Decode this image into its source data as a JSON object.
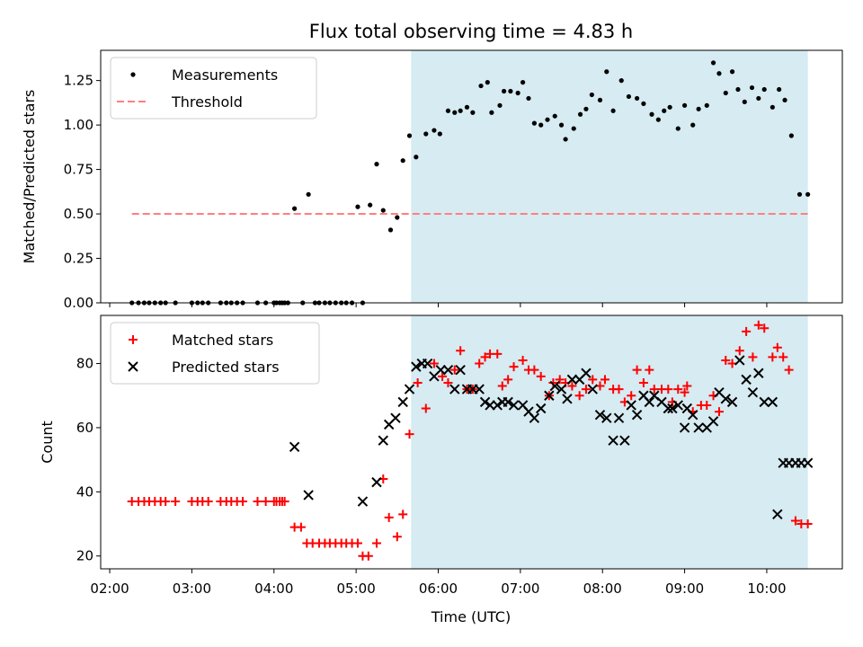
{
  "chart_data": {
    "title": "Flux total observing time = 4.83 h",
    "xlabel": "Time (UTC)",
    "x_tick_labels": [
      "02:00",
      "03:00",
      "04:00",
      "05:00",
      "06:00",
      "07:00",
      "08:00",
      "09:00",
      "10:00"
    ],
    "x_tick_values_h": [
      2,
      3,
      4,
      5,
      6,
      7,
      8,
      9,
      10
    ],
    "xlim_h": [
      1.89,
      10.92
    ],
    "shaded_span_h": [
      5.67,
      10.5
    ],
    "shade_color": "#add8e6",
    "panels": [
      {
        "type": "scatter",
        "ylabel": "Matched/Predicted stars",
        "ylim": [
          0,
          1.42
        ],
        "y_tick_values": [
          0,
          0.25,
          0.5,
          0.75,
          1.0,
          1.25
        ],
        "y_tick_labels": [
          "0.00",
          "0.25",
          "0.50",
          "0.75",
          "1.00",
          "1.25"
        ],
        "legend_position": "upper-left",
        "series": [
          {
            "name": "Measurements",
            "marker": "dot",
            "color": "#000000",
            "x": [
              2.27,
              2.35,
              2.42,
              2.48,
              2.55,
              2.62,
              2.68,
              2.8,
              3.0,
              3.07,
              3.13,
              3.2,
              3.35,
              3.42,
              3.48,
              3.55,
              3.62,
              3.8,
              3.9,
              4.0,
              4.03,
              4.07,
              4.1,
              4.13,
              4.17,
              4.25,
              4.35,
              4.42,
              4.5,
              4.55,
              4.62,
              4.68,
              4.75,
              4.82,
              4.88,
              4.95,
              5.02,
              5.08,
              5.17,
              5.25,
              5.33,
              5.42,
              5.5,
              5.57,
              5.65,
              5.73,
              5.85,
              5.95,
              6.02,
              6.12,
              6.2,
              6.27,
              6.35,
              6.42,
              6.52,
              6.6,
              6.65,
              6.75,
              6.8,
              6.88,
              6.97,
              7.03,
              7.1,
              7.17,
              7.25,
              7.33,
              7.42,
              7.5,
              7.55,
              7.65,
              7.73,
              7.8,
              7.87,
              7.97,
              8.05,
              8.13,
              8.23,
              8.32,
              8.42,
              8.5,
              8.6,
              8.68,
              8.75,
              8.82,
              8.92,
              9.0,
              9.1,
              9.17,
              9.27,
              9.35,
              9.42,
              9.5,
              9.58,
              9.65,
              9.73,
              9.82,
              9.9,
              9.97,
              10.07,
              10.15,
              10.22,
              10.3,
              10.4,
              10.5
            ],
            "y": [
              0,
              0,
              0,
              0,
              0,
              0,
              0,
              0,
              0,
              0,
              0,
              0,
              0,
              0,
              0,
              0,
              0,
              0,
              0,
              0,
              0,
              0,
              0,
              0,
              0,
              0.53,
              0,
              0.61,
              0,
              0,
              0,
              0,
              0,
              0,
              0,
              0,
              0.54,
              0,
              0.55,
              0.78,
              0.52,
              0.41,
              0.48,
              0.8,
              0.94,
              0.82,
              0.95,
              0.97,
              0.95,
              1.08,
              1.07,
              1.08,
              1.1,
              1.07,
              1.22,
              1.24,
              1.07,
              1.11,
              1.19,
              1.19,
              1.18,
              1.24,
              1.15,
              1.01,
              1.0,
              1.03,
              1.05,
              1.0,
              0.92,
              0.98,
              1.06,
              1.09,
              1.17,
              1.14,
              1.3,
              1.08,
              1.25,
              1.16,
              1.15,
              1.12,
              1.06,
              1.03,
              1.08,
              1.1,
              0.98,
              1.11,
              1.0,
              1.09,
              1.11,
              1.35,
              1.29,
              1.18,
              1.3,
              1.2,
              1.13,
              1.21,
              1.15,
              1.2,
              1.1,
              1.2,
              1.14,
              0.94,
              0.61,
              0.61
            ]
          },
          {
            "name": "Threshold",
            "marker": "dashed-line",
            "color": "#ff7f7f",
            "x": [
              2.27,
              10.5
            ],
            "y": [
              0.5,
              0.5
            ]
          }
        ]
      },
      {
        "type": "scatter",
        "ylabel": "Count",
        "ylim": [
          16,
          95
        ],
        "y_tick_values": [
          20,
          40,
          60,
          80
        ],
        "y_tick_labels": [
          "20",
          "40",
          "60",
          "80"
        ],
        "legend_position": "upper-left",
        "series": [
          {
            "name": "Matched stars",
            "marker": "plus",
            "color": "#ff0000",
            "x": [
              2.27,
              2.35,
              2.42,
              2.48,
              2.55,
              2.62,
              2.68,
              2.8,
              3.0,
              3.07,
              3.13,
              3.2,
              3.35,
              3.42,
              3.48,
              3.55,
              3.62,
              3.8,
              3.9,
              4.0,
              4.03,
              4.07,
              4.1,
              4.13,
              4.25,
              4.33,
              4.4,
              4.47,
              4.55,
              4.62,
              4.68,
              4.75,
              4.82,
              4.88,
              4.95,
              5.02,
              5.08,
              5.15,
              5.25,
              5.33,
              5.4,
              5.5,
              5.57,
              5.65,
              5.75,
              5.85,
              5.95,
              6.05,
              6.12,
              6.2,
              6.27,
              6.35,
              6.42,
              6.5,
              6.57,
              6.63,
              6.72,
              6.78,
              6.85,
              6.92,
              7.03,
              7.1,
              7.17,
              7.25,
              7.35,
              7.4,
              7.48,
              7.55,
              7.63,
              7.72,
              7.8,
              7.88,
              7.97,
              8.03,
              8.13,
              8.2,
              8.27,
              8.35,
              8.42,
              8.5,
              8.57,
              8.63,
              8.72,
              8.8,
              8.85,
              8.92,
              9.0,
              9.03,
              9.1,
              9.2,
              9.27,
              9.35,
              9.42,
              9.5,
              9.58,
              9.67,
              9.75,
              9.83,
              9.9,
              9.97,
              10.07,
              10.13,
              10.2,
              10.27,
              10.35,
              10.42,
              10.5
            ],
            "y": [
              37,
              37,
              37,
              37,
              37,
              37,
              37,
              37,
              37,
              37,
              37,
              37,
              37,
              37,
              37,
              37,
              37,
              37,
              37,
              37,
              37,
              37,
              37,
              37,
              29,
              29,
              24,
              24,
              24,
              24,
              24,
              24,
              24,
              24,
              24,
              24,
              20,
              20,
              24,
              44,
              32,
              26,
              33,
              58,
              74,
              66,
              80,
              76,
              74,
              78,
              84,
              72,
              72,
              80,
              82,
              83,
              83,
              73,
              75,
              79,
              81,
              78,
              78,
              76,
              70,
              74,
              75,
              74,
              73,
              70,
              72,
              75,
              73,
              75,
              72,
              72,
              68,
              70,
              78,
              74,
              78,
              72,
              72,
              72,
              68,
              72,
              71,
              73,
              65,
              67,
              67,
              70,
              65,
              81,
              80,
              84,
              90,
              82,
              92,
              91,
              82,
              85,
              82,
              78,
              31,
              30,
              30
            ]
          },
          {
            "name": "Predicted stars",
            "marker": "x",
            "color": "#000000",
            "x": [
              4.25,
              4.42,
              5.08,
              5.25,
              5.33,
              5.4,
              5.48,
              5.57,
              5.65,
              5.73,
              5.8,
              5.87,
              5.95,
              6.03,
              6.12,
              6.2,
              6.27,
              6.35,
              6.42,
              6.5,
              6.57,
              6.63,
              6.72,
              6.78,
              6.85,
              6.92,
              7.03,
              7.1,
              7.17,
              7.25,
              7.35,
              7.42,
              7.5,
              7.57,
              7.63,
              7.72,
              7.8,
              7.88,
              7.97,
              8.05,
              8.13,
              8.2,
              8.27,
              8.35,
              8.42,
              8.5,
              8.57,
              8.63,
              8.72,
              8.8,
              8.85,
              8.92,
              9.0,
              9.03,
              9.1,
              9.17,
              9.27,
              9.35,
              9.42,
              9.5,
              9.58,
              9.67,
              9.75,
              9.83,
              9.9,
              9.97,
              10.07,
              10.13,
              10.2,
              10.27,
              10.35,
              10.42,
              10.5
            ],
            "y": [
              54,
              39,
              37,
              43,
              56,
              61,
              63,
              68,
              72,
              79,
              80,
              80,
              76,
              78,
              78,
              72,
              78,
              72,
              72,
              72,
              68,
              67,
              67,
              68,
              68,
              67,
              67,
              65,
              63,
              66,
              70,
              73,
              72,
              69,
              75,
              75,
              77,
              72,
              64,
              63,
              56,
              63,
              56,
              67,
              64,
              70,
              68,
              70,
              68,
              66,
              66,
              67,
              60,
              66,
              64,
              60,
              60,
              62,
              71,
              69,
              68,
              81,
              75,
              71,
              77,
              68,
              68,
              33,
              49,
              49,
              49,
              49,
              49
            ]
          }
        ]
      }
    ]
  }
}
